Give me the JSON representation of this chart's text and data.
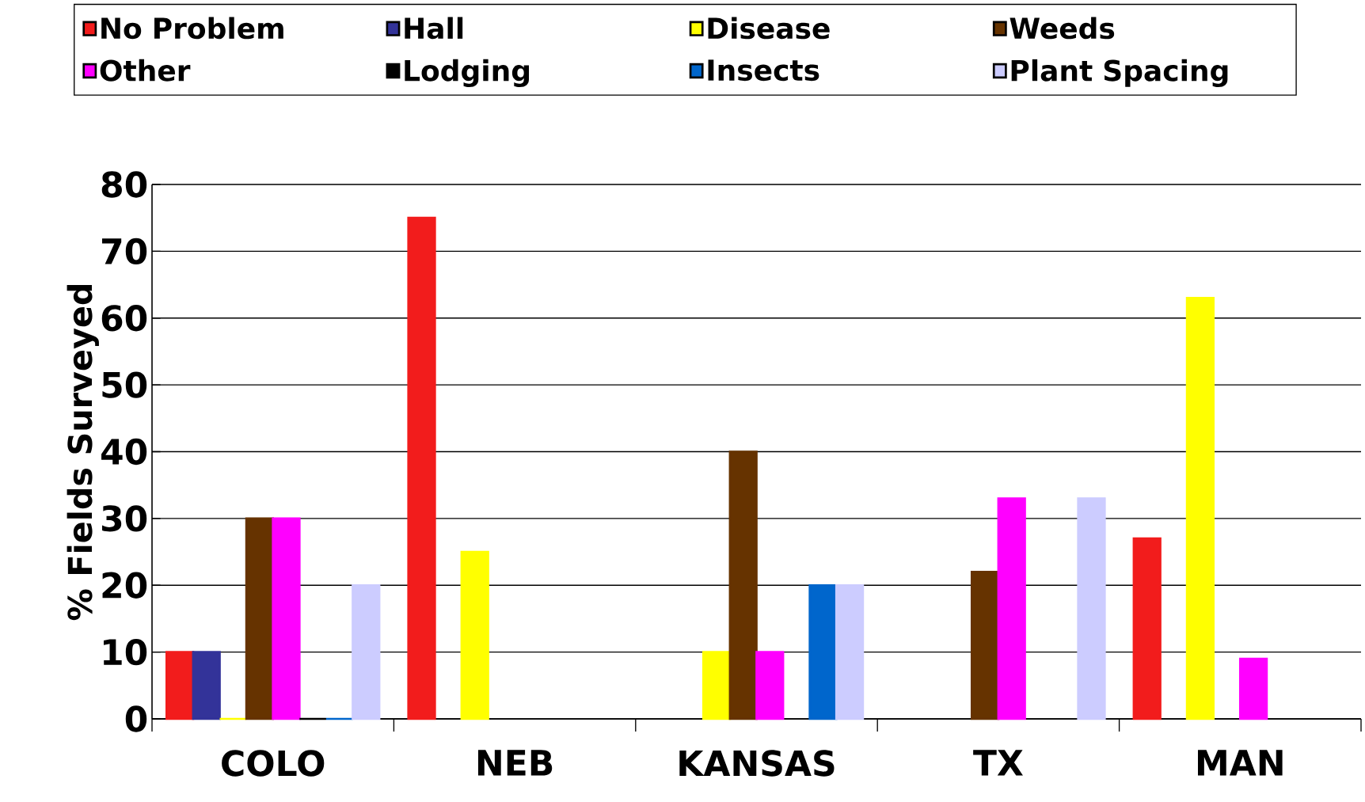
{
  "chart_data": {
    "type": "bar",
    "ylabel": "% Fields Surveyed",
    "categories": [
      "COLO",
      "NEB",
      "KANSAS",
      "TX",
      "MAN"
    ],
    "series": [
      {
        "name": "No Problem",
        "color": "#f21c1c",
        "values": [
          10,
          75,
          null,
          null,
          27
        ]
      },
      {
        "name": "Hall",
        "color": "#333399",
        "values": [
          10,
          null,
          null,
          null,
          null
        ]
      },
      {
        "name": "Disease",
        "color": "#ffff00",
        "values": [
          0,
          25,
          10,
          null,
          63
        ]
      },
      {
        "name": "Weeds",
        "color": "#663300",
        "values": [
          30,
          null,
          40,
          22,
          null
        ]
      },
      {
        "name": "Other",
        "color": "#ff00ff",
        "values": [
          30,
          null,
          10,
          33,
          9
        ]
      },
      {
        "name": "Lodging",
        "color": "#000000",
        "values": [
          0,
          null,
          null,
          null,
          null
        ]
      },
      {
        "name": "Insects",
        "color": "#0066cc",
        "values": [
          0,
          null,
          20,
          null,
          null
        ]
      },
      {
        "name": "Plant Spacing",
        "color": "#ccccff",
        "values": [
          20,
          null,
          20,
          33,
          null
        ]
      }
    ],
    "ylim": [
      0,
      80
    ],
    "yticks": [
      0,
      10,
      20,
      30,
      40,
      50,
      60,
      70,
      80
    ],
    "grid": "y",
    "legend": "top"
  }
}
